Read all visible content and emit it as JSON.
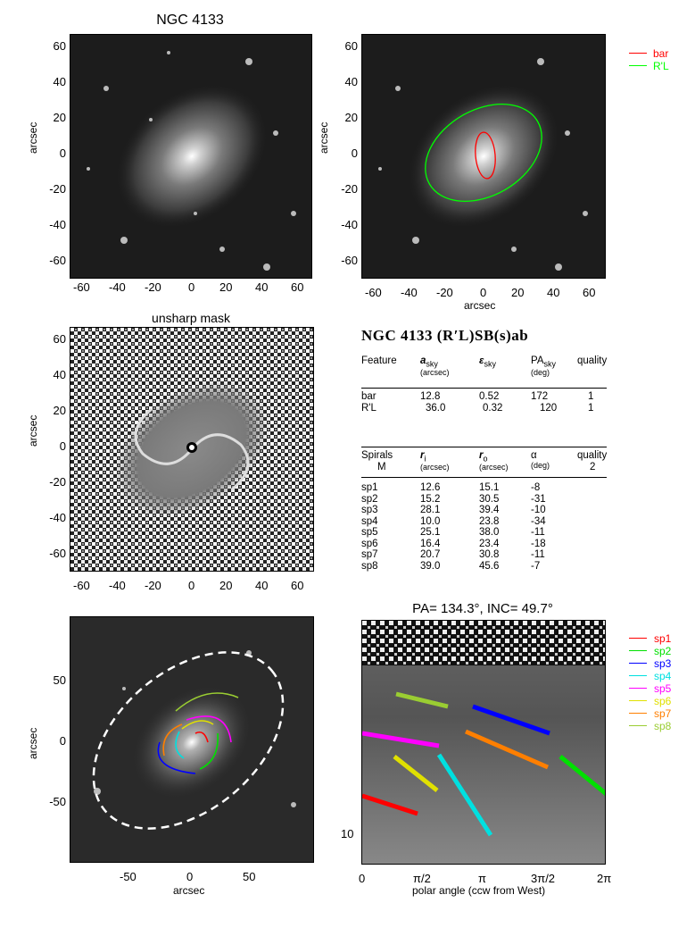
{
  "panel1": {
    "title": "NGC 4133",
    "ylabel": "arcsec",
    "yticks": [
      "60",
      "40",
      "20",
      "0",
      "-20",
      "-40",
      "-60"
    ],
    "xticks": [
      "-60",
      "-40",
      "-20",
      "0",
      "20",
      "40",
      "60"
    ]
  },
  "panel2": {
    "ylabel": "arcsec",
    "xlabel": "arcsec",
    "yticks": [
      "60",
      "40",
      "20",
      "0",
      "-20",
      "-40",
      "-60"
    ],
    "xticks": [
      "-60",
      "-40",
      "-20",
      "0",
      "20",
      "40",
      "60"
    ],
    "legend": [
      {
        "label": "bar",
        "color": "#ff0000"
      },
      {
        "label": "R'L",
        "color": "#00ff00"
      }
    ]
  },
  "panel3": {
    "title": "unsharp mask",
    "ylabel": "arcsec",
    "yticks": [
      "60",
      "40",
      "20",
      "0",
      "-20",
      "-40",
      "-60"
    ],
    "xticks": [
      "-60",
      "-40",
      "-20",
      "0",
      "20",
      "40",
      "60"
    ]
  },
  "table": {
    "title": "NGC 4133  (R′L)SB(s)ab",
    "features_header": {
      "feature": "Feature",
      "a": "a",
      "a_sub": "sky",
      "a_unit": "(arcsec)",
      "eps": "ε",
      "eps_sub": "sky",
      "pa": "PA",
      "pa_sub": "sky",
      "pa_unit": "(deg)",
      "quality": "quality"
    },
    "features": [
      {
        "name": "bar",
        "a": "12.8",
        "eps": "0.52",
        "pa": "172",
        "q": "1"
      },
      {
        "name": "R'L",
        "a": "36.0",
        "eps": "0.32",
        "pa": "120",
        "q": "1"
      }
    ],
    "spirals_header": {
      "spirals": "Spirals",
      "m": "M",
      "ri": "r",
      "ri_sub": "i",
      "ri_unit": "(arcsec)",
      "ro": "r",
      "ro_sub": "o",
      "ro_unit": "(arcsec)",
      "alpha": "α",
      "alpha_unit": "(deg)",
      "quality": "quality",
      "quality_val": "2"
    },
    "spirals": [
      {
        "name": "sp1",
        "ri": "12.6",
        "ro": "15.1",
        "alpha": "-8"
      },
      {
        "name": "sp2",
        "ri": "15.2",
        "ro": "30.5",
        "alpha": "-31"
      },
      {
        "name": "sp3",
        "ri": "28.1",
        "ro": "39.4",
        "alpha": "-10"
      },
      {
        "name": "sp4",
        "ri": "10.0",
        "ro": "23.8",
        "alpha": "-34"
      },
      {
        "name": "sp5",
        "ri": "25.1",
        "ro": "38.0",
        "alpha": "-11"
      },
      {
        "name": "sp6",
        "ri": "16.4",
        "ro": "23.4",
        "alpha": "-18"
      },
      {
        "name": "sp7",
        "ri": "20.7",
        "ro": "30.8",
        "alpha": "-11"
      },
      {
        "name": "sp8",
        "ri": "39.0",
        "ro": "45.6",
        "alpha": "-7"
      }
    ]
  },
  "panel5": {
    "ylabel": "arcsec",
    "xlabel": "arcsec",
    "yticks": [
      "50",
      "0",
      "-50"
    ],
    "xticks": [
      "-50",
      "0",
      "50"
    ]
  },
  "panel6": {
    "title": "PA= 134.3°, INC=  49.7°",
    "xlabel": "polar angle (ccw from West)",
    "ytick": "10",
    "xticks": [
      "0",
      "π/2",
      "π",
      "3π/2",
      "2π"
    ],
    "legend": [
      {
        "label": "sp1",
        "color": "#ff0000"
      },
      {
        "label": "sp2",
        "color": "#00e000"
      },
      {
        "label": "sp3",
        "color": "#0000ff"
      },
      {
        "label": "sp4",
        "color": "#00e0e0"
      },
      {
        "label": "sp5",
        "color": "#ff00ff"
      },
      {
        "label": "sp6",
        "color": "#e0e000"
      },
      {
        "label": "sp7",
        "color": "#ff7f00"
      },
      {
        "label": "sp8",
        "color": "#9acd32"
      }
    ]
  }
}
